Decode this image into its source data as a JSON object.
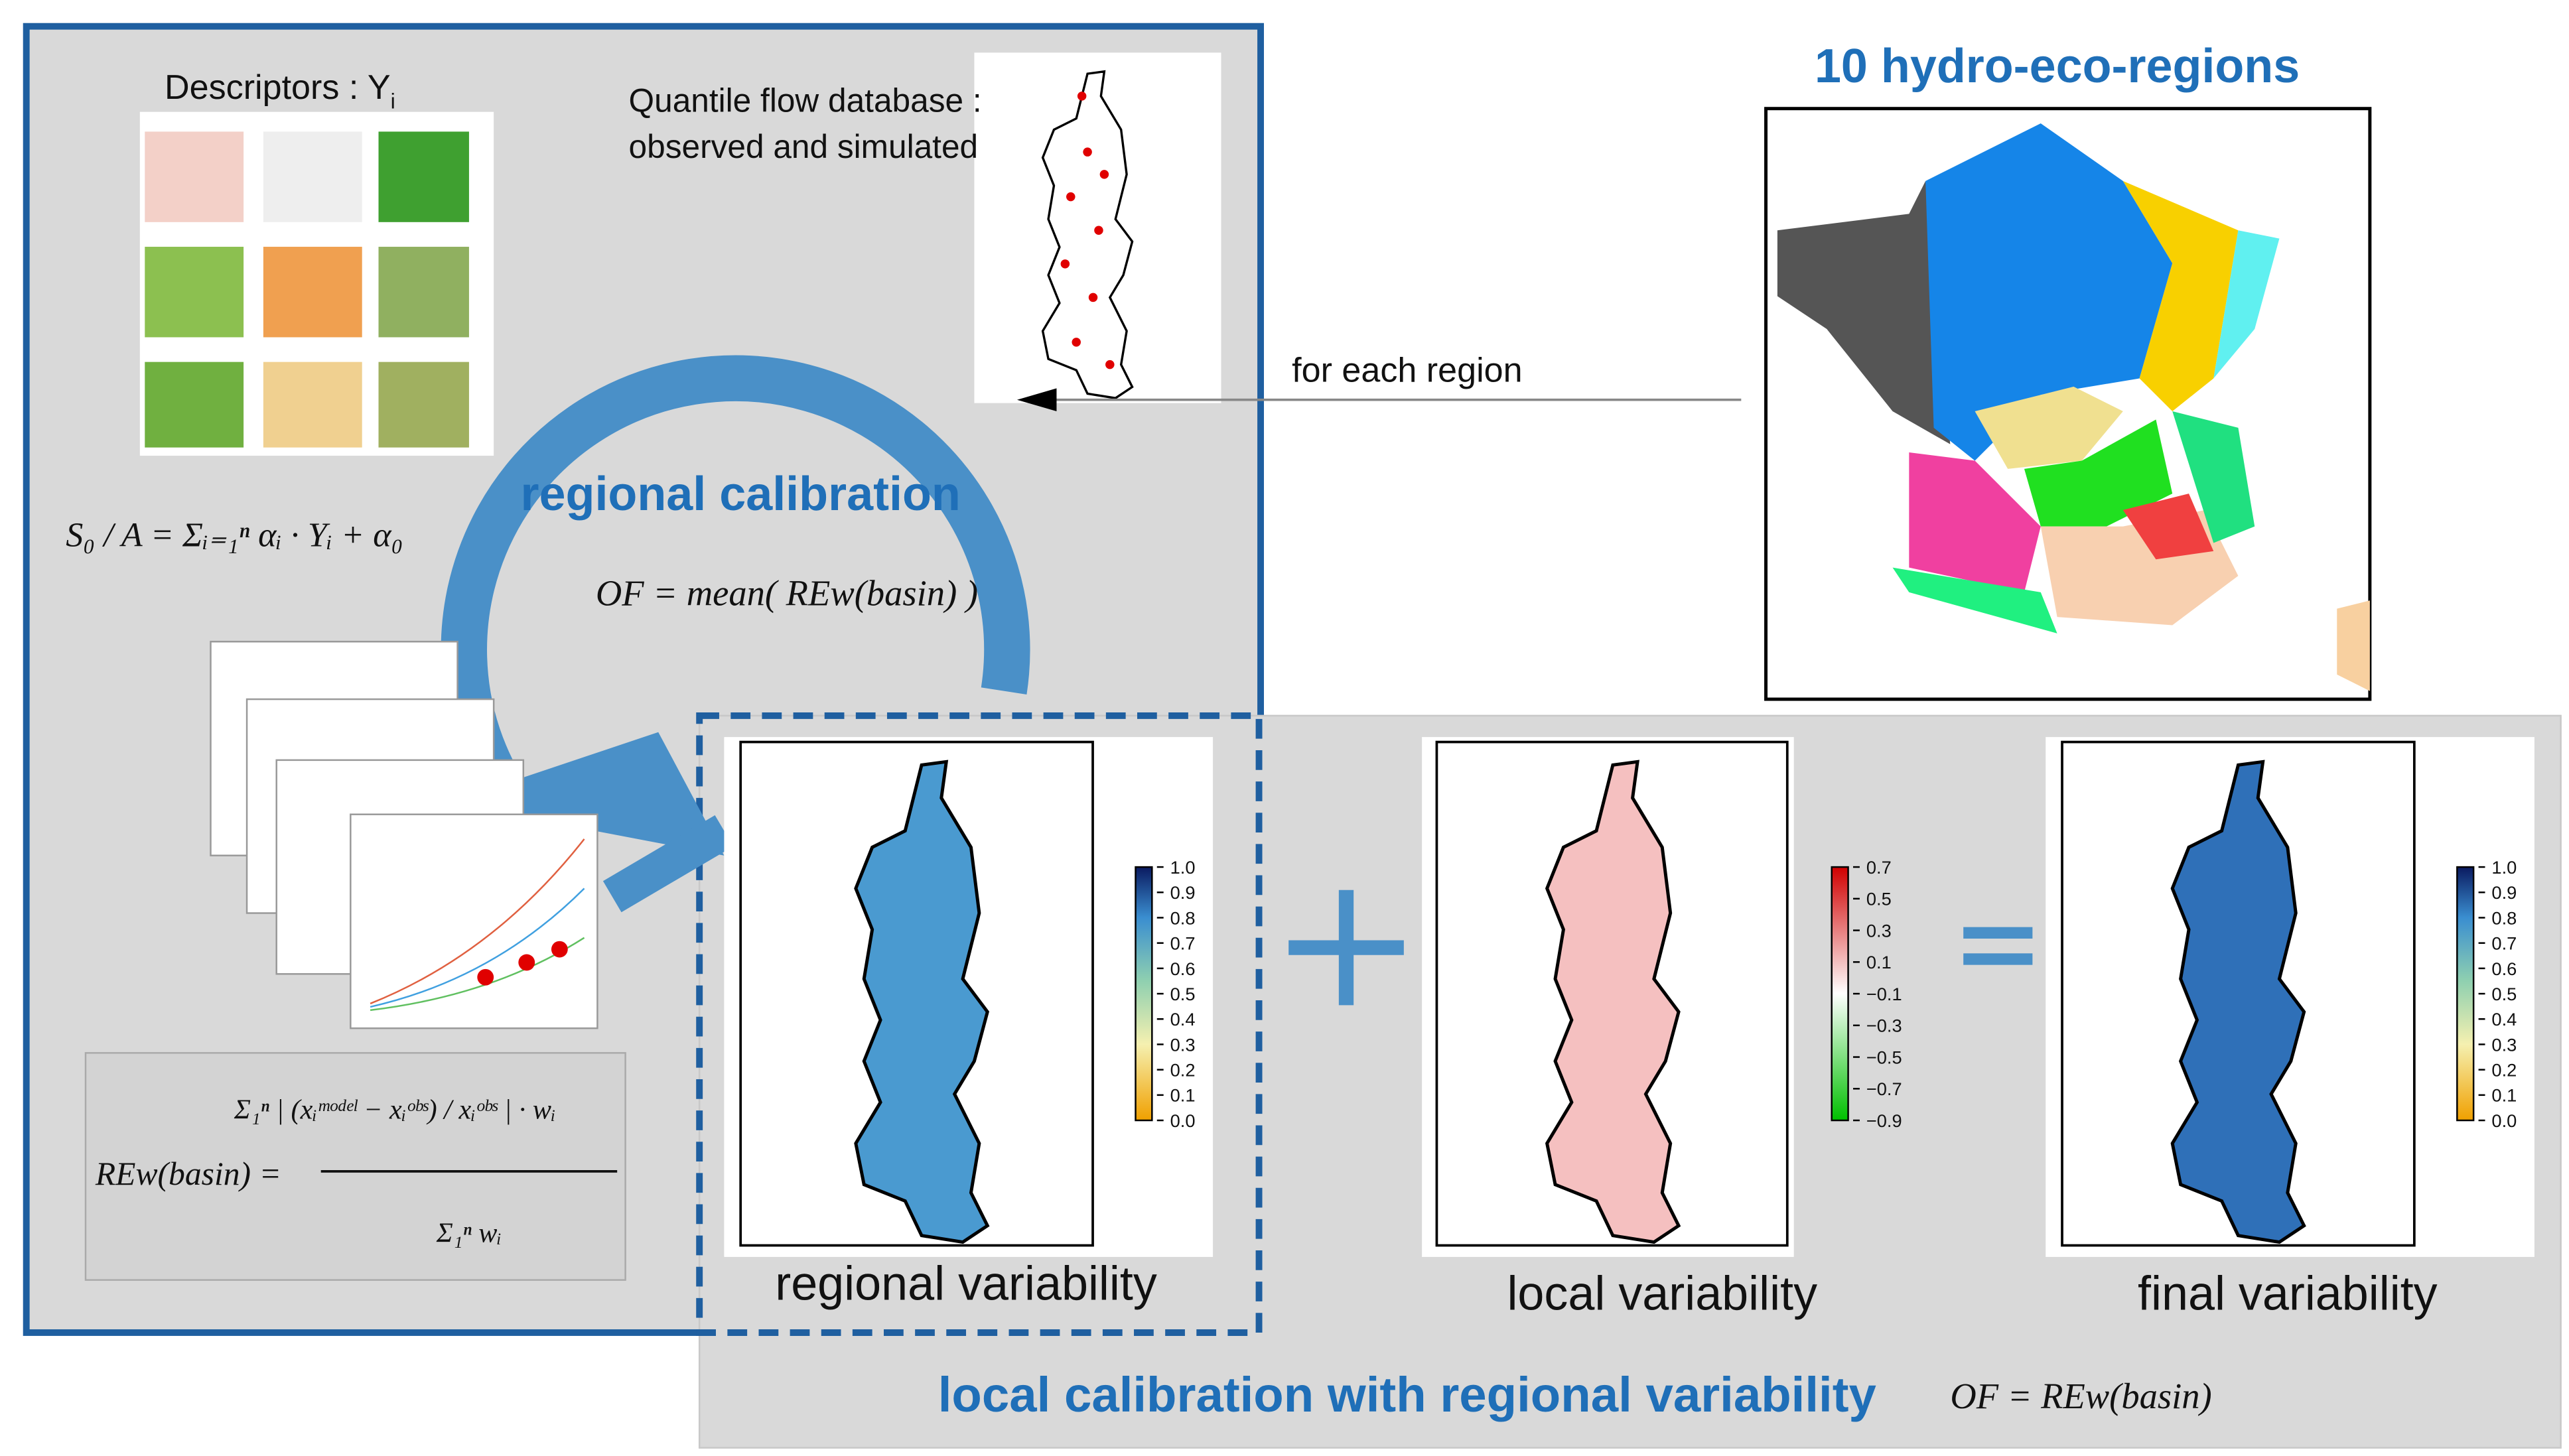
{
  "calibration": {
    "descriptors_label": "Descriptors : Y",
    "descriptors_subscript": "i",
    "database_label": [
      "Quantile flow database :",
      "observed and simulated"
    ],
    "regional_calibration": "regional calibration",
    "descriptor_formula": "S₀ / A = Σᵢ₌₁ⁿ αᵢ · Yᵢ + α₀",
    "objective_formula": "OF = mean( REw(basin) )",
    "error_formula_numerator": "Σ₁ⁿ | (xᵢᵐᵒᵈᵉˡ − xᵢᵒᵇˢ) / xᵢᵒᵇˢ | · wᵢ",
    "error_formula_lhs": "REw(basin) =",
    "error_formula_denominator": "Σ₁ⁿ wᵢ"
  },
  "regions": {
    "title": "10 hydro-eco-regions",
    "arrow_label": "for each region"
  },
  "panels": [
    {
      "label": "regional variability",
      "ticks": [
        "1.0",
        "0.9",
        "0.8",
        "0.7",
        "0.6",
        "0.5",
        "0.4",
        "0.3",
        "0.2",
        "0.1",
        "0.0"
      ]
    },
    {
      "label": "local variability",
      "ticks": [
        "0.7",
        "0.5",
        "0.3",
        "0.1",
        "−0.1",
        "−0.3",
        "−0.5",
        "−0.7",
        "−0.9"
      ]
    },
    {
      "label": "final variability",
      "ticks": [
        "1.0",
        "0.9",
        "0.8",
        "0.7",
        "0.6",
        "0.5",
        "0.4",
        "0.3",
        "0.2",
        "0.1",
        "0.0"
      ]
    }
  ],
  "local": {
    "title": "local calibration with regional variability",
    "formula": "OF = REw(basin)"
  }
}
